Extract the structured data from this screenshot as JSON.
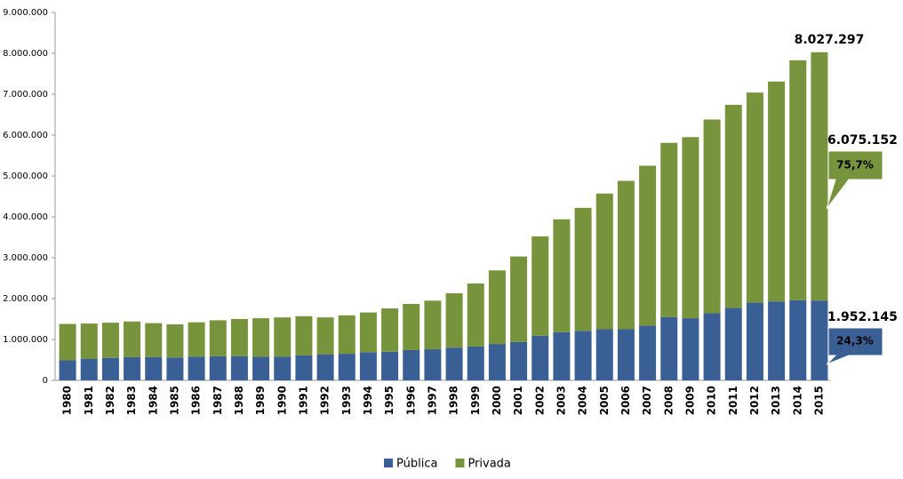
{
  "chart_data": {
    "type": "stacked_bar",
    "categories": [
      "1980",
      "1981",
      "1982",
      "1983",
      "1984",
      "1985",
      "1986",
      "1987",
      "1988",
      "1989",
      "1990",
      "1991",
      "1992",
      "1993",
      "1994",
      "1995",
      "1996",
      "1997",
      "1998",
      "1999",
      "2000",
      "2001",
      "2002",
      "2003",
      "2004",
      "2005",
      "2006",
      "2007",
      "2008",
      "2009",
      "2010",
      "2011",
      "2012",
      "2013",
      "2014",
      "2015"
    ],
    "series": [
      {
        "name": "Pública",
        "color": "#3a5f94",
        "values": [
          490000,
          530000,
          550000,
          570000,
          570000,
          560000,
          580000,
          590000,
          590000,
          580000,
          580000,
          610000,
          630000,
          650000,
          690000,
          700000,
          740000,
          760000,
          800000,
          830000,
          890000,
          940000,
          1090000,
          1180000,
          1210000,
          1250000,
          1250000,
          1340000,
          1550000,
          1520000,
          1640000,
          1770000,
          1900000,
          1930000,
          1960000,
          1952145
        ],
        "value_labels": [
          null,
          null,
          null,
          null,
          null,
          null,
          null,
          null,
          null,
          null,
          null,
          null,
          null,
          null,
          null,
          null,
          null,
          null,
          null,
          null,
          null,
          null,
          null,
          null,
          null,
          null,
          null,
          null,
          null,
          null,
          null,
          null,
          null,
          null,
          null,
          "1.952.145"
        ]
      },
      {
        "name": "Privada",
        "color": "#77933c",
        "values": [
          890000,
          860000,
          860000,
          870000,
          830000,
          810000,
          840000,
          880000,
          910000,
          940000,
          960000,
          960000,
          910000,
          940000,
          970000,
          1060000,
          1130000,
          1190000,
          1330000,
          1540000,
          1800000,
          2090000,
          2430000,
          2760000,
          3010000,
          3320000,
          3630000,
          3910000,
          4260000,
          4430000,
          4740000,
          4970000,
          5140000,
          5380000,
          5870000,
          6075152
        ],
        "value_labels": [
          null,
          null,
          null,
          null,
          null,
          null,
          null,
          null,
          null,
          null,
          null,
          null,
          null,
          null,
          null,
          null,
          null,
          null,
          null,
          null,
          null,
          null,
          null,
          null,
          null,
          null,
          null,
          null,
          null,
          null,
          null,
          null,
          null,
          null,
          null,
          "6.075.152"
        ]
      }
    ],
    "ylim": [
      0,
      9000000
    ],
    "yticks": [
      0,
      {
        "value": 1000000,
        "label": "1.000.000"
      },
      {
        "value": 2000000,
        "label": "2.000.000"
      },
      {
        "value": 3000000,
        "label": "3.000.000"
      },
      {
        "value": 4000000,
        "label": "4.000.000"
      },
      {
        "value": 5000000,
        "label": "5.000.000"
      },
      {
        "value": 6000000,
        "label": "6.000.000"
      },
      {
        "value": 7000000,
        "label": "7.000.000"
      },
      {
        "value": 8000000,
        "label": "8.000.000"
      },
      {
        "value": 9000000,
        "label": "9.000.000"
      }
    ],
    "annotations": [
      {
        "text": "8.027.297"
      },
      {
        "text": "75,7%"
      },
      {
        "text": "24,3%"
      }
    ],
    "grid": false
  }
}
